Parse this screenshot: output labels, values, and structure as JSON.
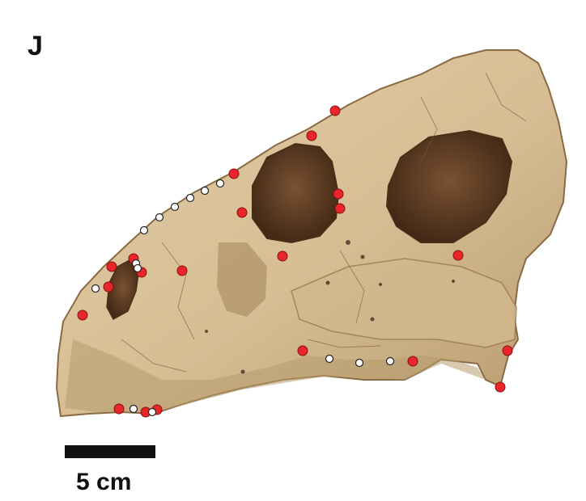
{
  "figure": {
    "panel_label": "J",
    "scale_bar_label": "5 cm",
    "subject": "skull-fossil-lateral-view",
    "colors": {
      "bone": "#d8c09a",
      "bone_shadow": "#a88a60",
      "opening": "#5a3a22",
      "landmark_fill": "#e8262a",
      "semilandmark_fill": "#ffffff",
      "marker_stroke": "#222222"
    }
  }
}
